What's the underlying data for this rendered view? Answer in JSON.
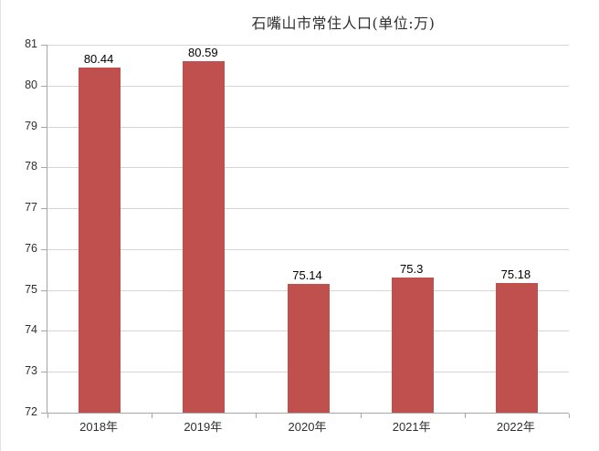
{
  "chart": {
    "title": "石嘴山市常住人口(单位:万)"
  },
  "colors": {
    "bar_fill": "#C0504D",
    "gridline": "#D5D5D5",
    "axis_line": "#A6A6A6",
    "label_text": "#2F2F2F",
    "data_label_text": "#000000",
    "background": "#FFFFFF"
  },
  "chart_data": {
    "type": "bar",
    "title": "石嘴山市常住人口(单位:万)",
    "categories": [
      "2018年",
      "2019年",
      "2020年",
      "2021年",
      "2022年"
    ],
    "values": [
      80.44,
      80.59,
      75.14,
      75.3,
      75.18
    ],
    "data_labels": [
      "80.44",
      "80.59",
      "75.14",
      "75.3",
      "75.18"
    ],
    "xlabel": "",
    "ylabel": "",
    "ylim": [
      72,
      81
    ],
    "y_ticks": [
      72,
      73,
      74,
      75,
      76,
      77,
      78,
      79,
      80,
      81
    ],
    "grid": true,
    "legend": false,
    "legend_position": "none",
    "bar_color": "#C0504D"
  }
}
